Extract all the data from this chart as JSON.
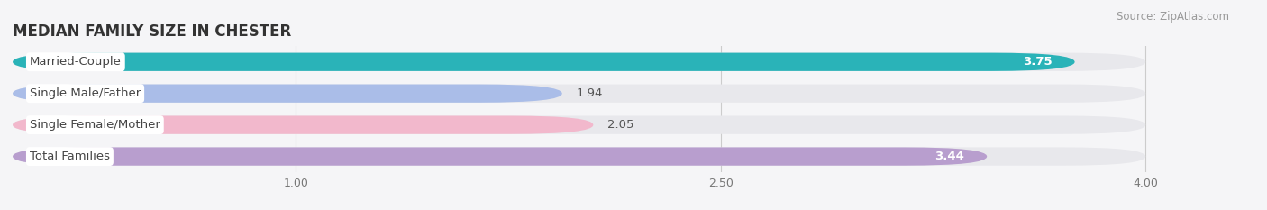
{
  "title": "MEDIAN FAMILY SIZE IN CHESTER",
  "source": "Source: ZipAtlas.com",
  "categories": [
    "Married-Couple",
    "Single Male/Father",
    "Single Female/Mother",
    "Total Families"
  ],
  "values": [
    3.75,
    1.94,
    2.05,
    3.44
  ],
  "bar_colors": [
    "#2ab3b8",
    "#aabde8",
    "#f2b8cc",
    "#b89ece"
  ],
  "track_color": "#e8e8ec",
  "label_bg_color": "#ffffff",
  "xlim_max": 4.25,
  "xdata_max": 4.0,
  "xticks": [
    1.0,
    2.5,
    4.0
  ],
  "background_color": "#f5f5f7",
  "plot_bg_color": "#f5f5f7",
  "title_fontsize": 12,
  "bar_label_fontsize": 9.5,
  "value_fontsize": 9.5,
  "source_fontsize": 8.5,
  "value_inside_threshold": 3.0,
  "value_colors_inside": [
    "#ffffff",
    "#ffffff",
    "#ffffff",
    "#ffffff"
  ],
  "value_colors_outside": [
    "#666666",
    "#666666",
    "#666666",
    "#666666"
  ]
}
